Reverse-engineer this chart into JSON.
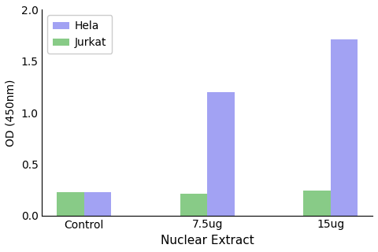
{
  "categories": [
    "Control",
    "7.5ug",
    "15ug"
  ],
  "hela_values": [
    0.23,
    1.2,
    1.71
  ],
  "jurkat_values": [
    0.23,
    0.21,
    0.24
  ],
  "hela_color": "#7b7bef",
  "jurkat_color": "#6abf69",
  "xlabel": "Nuclear Extract",
  "ylabel": "OD (450nm)",
  "ylim": [
    0,
    2.0
  ],
  "yticks": [
    0.0,
    0.5,
    1.0,
    1.5,
    2.0
  ],
  "legend_labels": [
    "Hela",
    "Jurkat"
  ],
  "bar_width": 0.22,
  "figsize": [
    4.8,
    3.2
  ],
  "dpi": 100
}
